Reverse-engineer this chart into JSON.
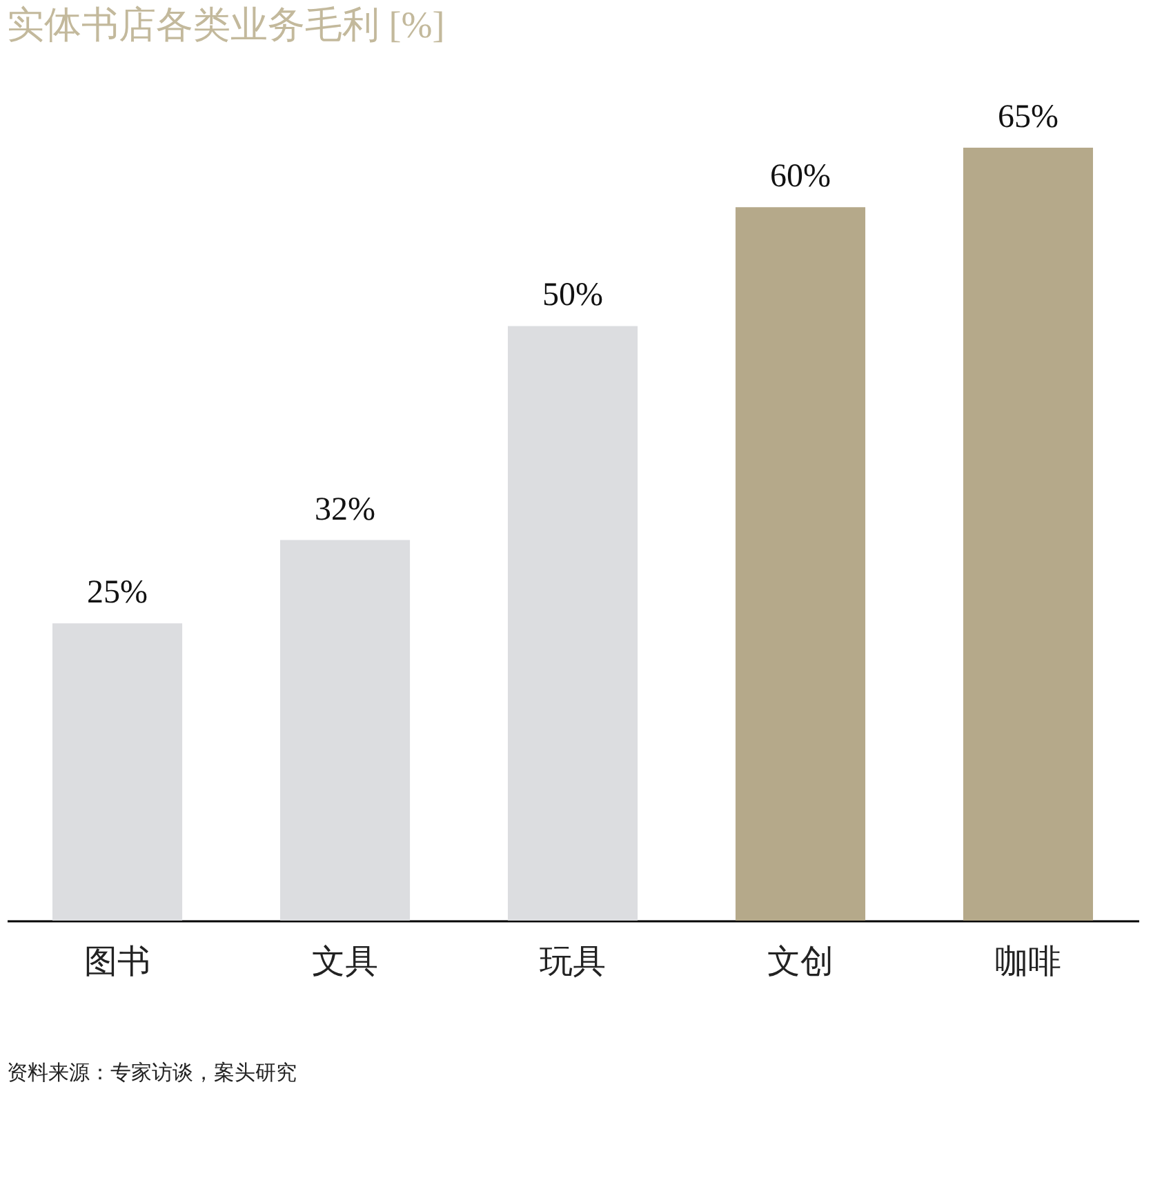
{
  "chart_data": {
    "type": "bar",
    "title": "实体书店各类业务毛利 [%]",
    "categories": [
      "图书",
      "文具",
      "玩具",
      "文创",
      "咖啡"
    ],
    "values": [
      25,
      32,
      50,
      60,
      65
    ],
    "colors": [
      "#dcdde0",
      "#dcdde0",
      "#dcdde0",
      "#b5a98a",
      "#b5a98a"
    ],
    "value_labels": [
      "25%",
      "32%",
      "50%",
      "60%",
      "65%"
    ],
    "annotations": [
      "资料来源：专家访谈，案头研究"
    ],
    "grid": false
  }
}
